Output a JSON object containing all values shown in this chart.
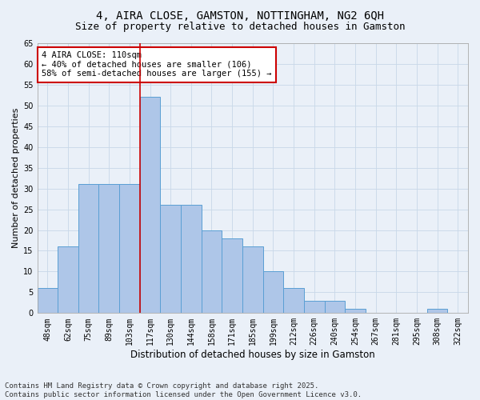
{
  "title1": "4, AIRA CLOSE, GAMSTON, NOTTINGHAM, NG2 6QH",
  "title2": "Size of property relative to detached houses in Gamston",
  "xlabel": "Distribution of detached houses by size in Gamston",
  "ylabel": "Number of detached properties",
  "bin_labels": [
    "48sqm",
    "62sqm",
    "75sqm",
    "89sqm",
    "103sqm",
    "117sqm",
    "130sqm",
    "144sqm",
    "158sqm",
    "171sqm",
    "185sqm",
    "199sqm",
    "212sqm",
    "226sqm",
    "240sqm",
    "254sqm",
    "267sqm",
    "281sqm",
    "295sqm",
    "308sqm",
    "322sqm"
  ],
  "bar_values": [
    6,
    16,
    31,
    31,
    31,
    52,
    26,
    26,
    20,
    18,
    16,
    10,
    6,
    3,
    3,
    1,
    0,
    0,
    0,
    1,
    0
  ],
  "bar_color": "#aec6e8",
  "bar_edge_color": "#5a9fd4",
  "property_line_x": 4.5,
  "property_label": "4 AIRA CLOSE: 110sqm",
  "annotation_line1": "← 40% of detached houses are smaller (106)",
  "annotation_line2": "58% of semi-detached houses are larger (155) →",
  "annotation_box_color": "#ffffff",
  "annotation_box_edge": "#cc0000",
  "line_color": "#cc0000",
  "grid_color": "#c8d8e8",
  "background_color": "#eaf0f8",
  "ylim": [
    0,
    65
  ],
  "yticks": [
    0,
    5,
    10,
    15,
    20,
    25,
    30,
    35,
    40,
    45,
    50,
    55,
    60,
    65
  ],
  "footnote1": "Contains HM Land Registry data © Crown copyright and database right 2025.",
  "footnote2": "Contains public sector information licensed under the Open Government Licence v3.0.",
  "title1_fontsize": 10,
  "title2_fontsize": 9,
  "xlabel_fontsize": 8.5,
  "ylabel_fontsize": 8,
  "tick_fontsize": 7,
  "annotation_fontsize": 7.5,
  "footnote_fontsize": 6.5
}
